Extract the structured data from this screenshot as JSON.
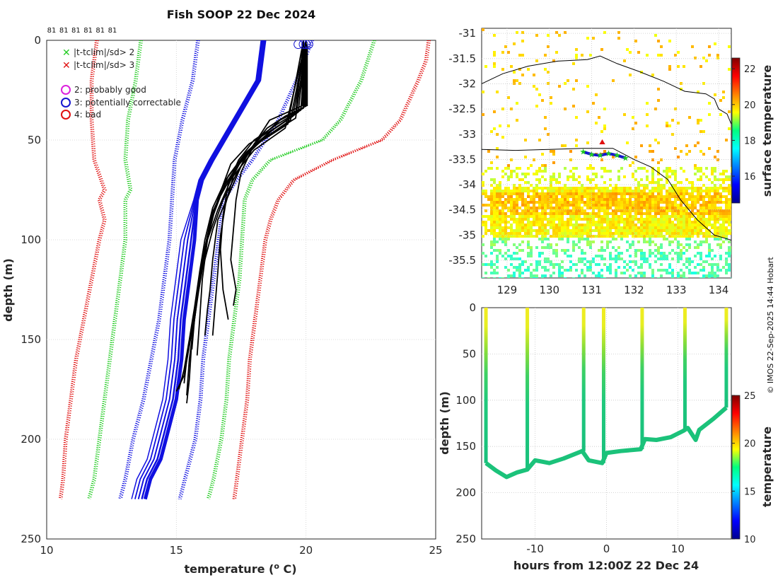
{
  "title": "Fish SOOP 22 Dec 2024",
  "watermark": "© IMOS 22-Sep-2025 14:44 Hobart",
  "profile_panel": {
    "count_labels": [
      "81",
      "81",
      "81",
      "81",
      "81",
      "81"
    ],
    "legend": {
      "sd2": "|t-tclim|/sd> 2",
      "sd3": "|t-tclim|/sd> 3",
      "q2": "2: probably good",
      "q3": "3: potentially correctable",
      "q4": "4: bad"
    },
    "colors": {
      "sd2": "#22cc22",
      "sd3": "#e01010",
      "q2": "#dd22dd",
      "q3": "#1515d0",
      "q4": "#e01010",
      "profile": "#000000",
      "mean": "#1010e0"
    }
  },
  "map_panel": {
    "colorbar_label": "surface temperature",
    "colorbar_ticks": [
      "16",
      "18",
      "20",
      "22"
    ]
  },
  "section_panel": {
    "colorbar_label": "temperature",
    "colorbar_ticks": [
      "10",
      "15",
      "20",
      "25"
    ]
  },
  "chart_data": [
    {
      "type": "line",
      "name": "temperature-profiles",
      "title": "Fish SOOP 22 Dec 2024",
      "xlabel": "temperature (o C)",
      "ylabel": "depth (m)",
      "xlim": [
        10,
        25
      ],
      "ylim": [
        250,
        0
      ],
      "xticks": [
        "10",
        "15",
        "20",
        "25"
      ],
      "yticks": [
        "0",
        "50",
        "100",
        "150",
        "200",
        "250"
      ],
      "grid": true,
      "climatology": {
        "mean": {
          "depth": [
            0,
            20,
            40,
            60,
            70,
            80,
            100,
            120,
            140,
            160,
            180,
            200,
            210,
            220,
            230
          ],
          "temp": [
            18.4,
            18.2,
            17.3,
            16.4,
            16.0,
            15.8,
            15.7,
            15.5,
            15.3,
            15.2,
            15.0,
            14.6,
            14.4,
            14.0,
            13.8
          ]
        },
        "sd1_low": {
          "depth": [
            0,
            20,
            40,
            60,
            80,
            100,
            120,
            140,
            160,
            180,
            200,
            220,
            230
          ],
          "temp": [
            15.8,
            15.6,
            15.2,
            14.9,
            14.8,
            14.7,
            14.5,
            14.3,
            14.0,
            13.7,
            13.3,
            13.0,
            12.8
          ]
        },
        "sd1_high": {
          "depth": [
            0,
            20,
            40,
            60,
            70,
            80,
            100,
            120,
            140,
            160,
            180,
            200,
            220,
            230
          ],
          "temp": [
            20.2,
            19.6,
            18.9,
            17.9,
            17.3,
            16.8,
            16.6,
            16.4,
            16.2,
            16.0,
            15.9,
            15.7,
            15.3,
            15.1
          ]
        },
        "sd2_low": {
          "depth": [
            0,
            20,
            40,
            60,
            75,
            80,
            100,
            120,
            140,
            160,
            180,
            200,
            220,
            230
          ],
          "temp": [
            13.6,
            13.4,
            13.1,
            13.0,
            13.2,
            13.0,
            13.0,
            12.8,
            12.6,
            12.4,
            12.2,
            12.0,
            11.8,
            11.6
          ]
        },
        "sd2_high": {
          "depth": [
            0,
            20,
            40,
            50,
            60,
            70,
            80,
            100,
            120,
            140,
            160,
            180,
            200,
            220,
            230
          ],
          "temp": [
            22.6,
            22.1,
            21.3,
            20.6,
            18.6,
            17.9,
            17.6,
            17.5,
            17.4,
            17.2,
            17.0,
            16.9,
            16.7,
            16.4,
            16.2
          ]
        },
        "sd3_low": {
          "depth": [
            0,
            20,
            40,
            60,
            75,
            80,
            90,
            100,
            120,
            140,
            160,
            180,
            200,
            220,
            230
          ],
          "temp": [
            11.9,
            11.7,
            11.7,
            11.8,
            12.2,
            12.0,
            12.2,
            12.0,
            11.7,
            11.4,
            11.1,
            10.9,
            10.7,
            10.6,
            10.5
          ]
        },
        "sd3_high": {
          "depth": [
            0,
            10,
            20,
            40,
            50,
            60,
            70,
            80,
            90,
            100,
            120,
            140,
            160,
            180,
            200,
            220,
            230
          ],
          "temp": [
            24.7,
            24.6,
            24.3,
            23.6,
            22.9,
            21.0,
            19.5,
            18.9,
            18.6,
            18.4,
            18.2,
            18.0,
            17.8,
            17.7,
            17.5,
            17.3,
            17.2
          ]
        }
      },
      "profiles": [
        {
          "depth": [
            0,
            32,
            36,
            40,
            48,
            60,
            75,
            90,
            110,
            125,
            135,
            148
          ],
          "temp": [
            20.0,
            20.0,
            19.3,
            18.6,
            18.2,
            17.6,
            17.1,
            16.6,
            16.4,
            16.3,
            16.2,
            16.1
          ]
        },
        {
          "depth": [
            0,
            33,
            38,
            44,
            52,
            65,
            80,
            95,
            115,
            130,
            145,
            160,
            172
          ],
          "temp": [
            20.0,
            20.0,
            19.2,
            18.5,
            18.0,
            17.4,
            16.8,
            16.4,
            16.0,
            15.8,
            15.6,
            15.4,
            15.3
          ]
        },
        {
          "depth": [
            0,
            34,
            40,
            48,
            58,
            70,
            85,
            100,
            120,
            140,
            160,
            178
          ],
          "temp": [
            19.9,
            19.9,
            19.0,
            18.3,
            17.6,
            17.1,
            16.6,
            16.2,
            15.9,
            15.7,
            15.5,
            15.4
          ]
        },
        {
          "depth": [
            0,
            35,
            42,
            50,
            60,
            72,
            88,
            105,
            125,
            140
          ],
          "temp": [
            20.0,
            19.8,
            18.9,
            18.0,
            17.4,
            17.0,
            16.8,
            16.7,
            16.8,
            17.0
          ]
        },
        {
          "depth": [
            0,
            36,
            45,
            55,
            66,
            80,
            95,
            110,
            125,
            133
          ],
          "temp": [
            20.0,
            19.7,
            18.7,
            17.9,
            17.5,
            17.3,
            17.2,
            17.1,
            17.3,
            17.2
          ]
        },
        {
          "depth": [
            0,
            37,
            44,
            52,
            62,
            76,
            92,
            110,
            130,
            150,
            170,
            182
          ],
          "temp": [
            19.9,
            19.6,
            18.8,
            17.8,
            17.1,
            16.7,
            16.3,
            16.0,
            15.8,
            15.6,
            15.5,
            15.4
          ]
        },
        {
          "depth": [
            0,
            38,
            46,
            56,
            68,
            84,
            100,
            120,
            140,
            158
          ],
          "temp": [
            20.0,
            19.5,
            18.6,
            17.7,
            17.0,
            16.5,
            16.2,
            16.0,
            15.9,
            15.8
          ]
        },
        {
          "depth": [
            0,
            40,
            50,
            60,
            72,
            86,
            104,
            122,
            140,
            155
          ],
          "temp": [
            20.0,
            19.4,
            18.3,
            17.5,
            16.9,
            16.4,
            16.1,
            15.9,
            15.7,
            15.6
          ]
        },
        {
          "depth": [
            0,
            42,
            52,
            64,
            78,
            92,
            110,
            128,
            146,
            168,
            176
          ],
          "temp": [
            19.9,
            19.3,
            18.1,
            17.3,
            16.7,
            16.3,
            16.0,
            15.8,
            15.6,
            15.3,
            15.0
          ]
        },
        {
          "depth": [
            0,
            44,
            55,
            68,
            82,
            98,
            116,
            132,
            148
          ],
          "temp": [
            20.0,
            19.2,
            18.0,
            17.2,
            16.9,
            16.7,
            16.6,
            16.5,
            16.4
          ]
        },
        {
          "depth": [
            0,
            39,
            48,
            58,
            70,
            84,
            100,
            116,
            134,
            150,
            165,
            175
          ],
          "temp": [
            20.0,
            19.6,
            18.5,
            17.6,
            16.9,
            16.4,
            16.1,
            15.9,
            15.7,
            15.5,
            15.3,
            15.1
          ]
        }
      ]
    },
    {
      "type": "heatmap",
      "name": "sst-map",
      "xlabel": "",
      "ylabel": "",
      "xlim": [
        128.4,
        134.3
      ],
      "ylim": [
        -35.85,
        -30.9
      ],
      "xticks": [
        "129",
        "130",
        "131",
        "132",
        "133",
        "134"
      ],
      "yticks": [
        "-31",
        "-31.5",
        "-32",
        "-32.5",
        "-33",
        "-33.5",
        "-34",
        "-34.5",
        "-35",
        "-35.5"
      ],
      "colorbar_range": [
        14.5,
        22.6
      ],
      "track": {
        "lon": [
          130.8,
          131.0,
          131.2,
          131.4,
          131.6,
          131.8
        ],
        "lat": [
          -33.35,
          -33.4,
          -33.42,
          -33.38,
          -33.42,
          -33.47
        ]
      }
    },
    {
      "type": "line",
      "name": "depth-section",
      "xlabel": "hours from 12:00Z 22 Dec 24",
      "ylabel": "depth (m)",
      "xlim": [
        -17.5,
        17.5
      ],
      "ylim": [
        250,
        0
      ],
      "xticks": [
        "-10",
        "0",
        "10"
      ],
      "yticks": [
        "0",
        "50",
        "100",
        "150",
        "200",
        "250"
      ],
      "colorbar_range": [
        10,
        25
      ],
      "drops": [
        -16.9,
        -11.1,
        -3.2,
        -0.4,
        5.0,
        11.0,
        16.8
      ],
      "bottom": {
        "hours": [
          -16.9,
          -15.5,
          -14.0,
          -12.5,
          -11.1,
          -10.0,
          -8.0,
          -6.0,
          -3.4,
          -2.5,
          -0.6,
          0,
          2,
          4.8,
          5.4,
          7,
          9,
          10.8,
          11.4,
          12.5,
          13,
          15,
          16.8
        ],
        "depth": [
          168,
          176,
          183,
          178,
          175,
          165,
          168,
          163,
          155,
          165,
          168,
          157,
          155,
          153,
          142,
          143,
          140,
          133,
          130,
          143,
          132,
          120,
          108
        ]
      }
    }
  ]
}
